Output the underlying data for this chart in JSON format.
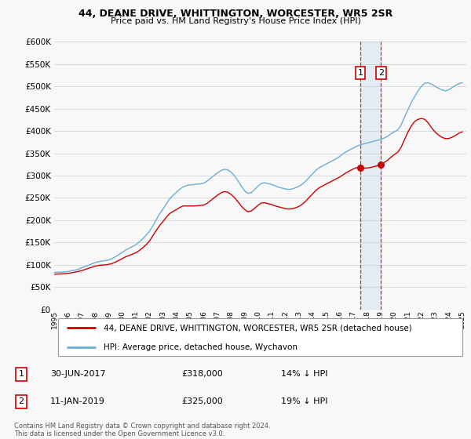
{
  "title": "44, DEANE DRIVE, WHITTINGTON, WORCESTER, WR5 2SR",
  "subtitle": "Price paid vs. HM Land Registry's House Price Index (HPI)",
  "ylim": [
    0,
    600000
  ],
  "yticks": [
    0,
    50000,
    100000,
    150000,
    200000,
    250000,
    300000,
    350000,
    400000,
    450000,
    500000,
    550000,
    600000
  ],
  "xlim_start": 1995.0,
  "xlim_end": 2025.3,
  "legend_entry1": "44, DEANE DRIVE, WHITTINGTON, WORCESTER, WR5 2SR (detached house)",
  "legend_entry2": "HPI: Average price, detached house, Wychavon",
  "marker1_year": 2017.5,
  "marker1_value": 318000,
  "marker2_year": 2019.03,
  "marker2_value": 325000,
  "footer": "Contains HM Land Registry data © Crown copyright and database right 2024.\nThis data is licensed under the Open Government Licence v3.0.",
  "hpi_color": "#6aaed6",
  "price_color": "#cc0000",
  "background_color": "#f8f8f8",
  "grid_color": "#cccccc",
  "hpi_data": [
    [
      1995.0,
      83000
    ],
    [
      1995.25,
      83500
    ],
    [
      1995.5,
      83800
    ],
    [
      1995.75,
      84200
    ],
    [
      1996.0,
      85000
    ],
    [
      1996.25,
      86500
    ],
    [
      1996.5,
      88000
    ],
    [
      1996.75,
      90000
    ],
    [
      1997.0,
      93000
    ],
    [
      1997.25,
      96000
    ],
    [
      1997.5,
      99000
    ],
    [
      1997.75,
      102000
    ],
    [
      1998.0,
      105000
    ],
    [
      1998.25,
      107000
    ],
    [
      1998.5,
      108500
    ],
    [
      1998.75,
      109500
    ],
    [
      1999.0,
      111000
    ],
    [
      1999.25,
      114000
    ],
    [
      1999.5,
      118000
    ],
    [
      1999.75,
      123000
    ],
    [
      2000.0,
      128000
    ],
    [
      2000.25,
      133000
    ],
    [
      2000.5,
      137000
    ],
    [
      2000.75,
      141000
    ],
    [
      2001.0,
      145000
    ],
    [
      2001.25,
      151000
    ],
    [
      2001.5,
      158000
    ],
    [
      2001.75,
      166000
    ],
    [
      2002.0,
      175000
    ],
    [
      2002.25,
      187000
    ],
    [
      2002.5,
      201000
    ],
    [
      2002.75,
      214000
    ],
    [
      2003.0,
      225000
    ],
    [
      2003.25,
      237000
    ],
    [
      2003.5,
      248000
    ],
    [
      2003.75,
      256000
    ],
    [
      2004.0,
      263000
    ],
    [
      2004.25,
      270000
    ],
    [
      2004.5,
      275000
    ],
    [
      2004.75,
      278000
    ],
    [
      2005.0,
      279000
    ],
    [
      2005.25,
      280000
    ],
    [
      2005.5,
      281000
    ],
    [
      2005.75,
      281500
    ],
    [
      2006.0,
      283000
    ],
    [
      2006.25,
      288000
    ],
    [
      2006.5,
      294000
    ],
    [
      2006.75,
      300000
    ],
    [
      2007.0,
      306000
    ],
    [
      2007.25,
      311000
    ],
    [
      2007.5,
      314000
    ],
    [
      2007.75,
      313000
    ],
    [
      2008.0,
      308000
    ],
    [
      2008.25,
      300000
    ],
    [
      2008.5,
      289000
    ],
    [
      2008.75,
      277000
    ],
    [
      2009.0,
      266000
    ],
    [
      2009.25,
      260000
    ],
    [
      2009.5,
      262000
    ],
    [
      2009.75,
      269000
    ],
    [
      2010.0,
      277000
    ],
    [
      2010.25,
      283000
    ],
    [
      2010.5,
      284000
    ],
    [
      2010.75,
      282000
    ],
    [
      2011.0,
      280000
    ],
    [
      2011.25,
      277000
    ],
    [
      2011.5,
      274000
    ],
    [
      2011.75,
      272000
    ],
    [
      2012.0,
      270000
    ],
    [
      2012.25,
      269000
    ],
    [
      2012.5,
      270000
    ],
    [
      2012.75,
      273000
    ],
    [
      2013.0,
      276000
    ],
    [
      2013.25,
      281000
    ],
    [
      2013.5,
      288000
    ],
    [
      2013.75,
      296000
    ],
    [
      2014.0,
      304000
    ],
    [
      2014.25,
      312000
    ],
    [
      2014.5,
      318000
    ],
    [
      2014.75,
      322000
    ],
    [
      2015.0,
      326000
    ],
    [
      2015.25,
      330000
    ],
    [
      2015.5,
      334000
    ],
    [
      2015.75,
      338000
    ],
    [
      2016.0,
      343000
    ],
    [
      2016.25,
      349000
    ],
    [
      2016.5,
      354000
    ],
    [
      2016.75,
      358000
    ],
    [
      2017.0,
      362000
    ],
    [
      2017.25,
      366000
    ],
    [
      2017.5,
      369000
    ],
    [
      2017.75,
      371000
    ],
    [
      2018.0,
      373000
    ],
    [
      2018.25,
      375000
    ],
    [
      2018.5,
      377000
    ],
    [
      2018.75,
      379000
    ],
    [
      2019.0,
      381000
    ],
    [
      2019.25,
      384000
    ],
    [
      2019.5,
      388000
    ],
    [
      2019.75,
      393000
    ],
    [
      2020.0,
      398000
    ],
    [
      2020.25,
      402000
    ],
    [
      2020.5,
      413000
    ],
    [
      2020.75,
      430000
    ],
    [
      2021.0,
      447000
    ],
    [
      2021.25,
      463000
    ],
    [
      2021.5,
      477000
    ],
    [
      2021.75,
      490000
    ],
    [
      2022.0,
      500000
    ],
    [
      2022.25,
      507000
    ],
    [
      2022.5,
      508000
    ],
    [
      2022.75,
      505000
    ],
    [
      2023.0,
      500000
    ],
    [
      2023.25,
      496000
    ],
    [
      2023.5,
      492000
    ],
    [
      2023.75,
      490000
    ],
    [
      2024.0,
      492000
    ],
    [
      2024.25,
      497000
    ],
    [
      2024.5,
      502000
    ],
    [
      2024.75,
      506000
    ],
    [
      2025.0,
      508000
    ]
  ],
  "price_data": [
    [
      1995.0,
      79000
    ],
    [
      1995.25,
      79500
    ],
    [
      1995.5,
      79800
    ],
    [
      1995.75,
      80200
    ],
    [
      1996.0,
      81000
    ],
    [
      1996.25,
      82000
    ],
    [
      1996.5,
      83500
    ],
    [
      1996.75,
      85000
    ],
    [
      1997.0,
      87000
    ],
    [
      1997.25,
      89500
    ],
    [
      1997.5,
      92000
    ],
    [
      1997.75,
      94500
    ],
    [
      1998.0,
      97000
    ],
    [
      1998.25,
      98500
    ],
    [
      1998.5,
      99500
    ],
    [
      1998.75,
      100000
    ],
    [
      1999.0,
      101000
    ],
    [
      1999.25,
      103000
    ],
    [
      1999.5,
      106000
    ],
    [
      1999.75,
      110000
    ],
    [
      2000.0,
      114000
    ],
    [
      2000.25,
      118000
    ],
    [
      2000.5,
      121000
    ],
    [
      2000.75,
      124000
    ],
    [
      2001.0,
      127000
    ],
    [
      2001.25,
      132000
    ],
    [
      2001.5,
      138000
    ],
    [
      2001.75,
      145000
    ],
    [
      2002.0,
      153000
    ],
    [
      2002.25,
      165000
    ],
    [
      2002.5,
      177000
    ],
    [
      2002.75,
      188000
    ],
    [
      2003.0,
      197000
    ],
    [
      2003.25,
      207000
    ],
    [
      2003.5,
      215000
    ],
    [
      2003.75,
      220000
    ],
    [
      2004.0,
      224000
    ],
    [
      2004.25,
      229000
    ],
    [
      2004.5,
      232000
    ],
    [
      2004.75,
      232000
    ],
    [
      2005.0,
      232000
    ],
    [
      2005.25,
      232000
    ],
    [
      2005.5,
      232500
    ],
    [
      2005.75,
      233000
    ],
    [
      2006.0,
      234000
    ],
    [
      2006.25,
      238000
    ],
    [
      2006.5,
      244000
    ],
    [
      2006.75,
      250000
    ],
    [
      2007.0,
      256000
    ],
    [
      2007.25,
      261000
    ],
    [
      2007.5,
      264000
    ],
    [
      2007.75,
      263000
    ],
    [
      2008.0,
      258000
    ],
    [
      2008.25,
      251000
    ],
    [
      2008.5,
      242000
    ],
    [
      2008.75,
      232000
    ],
    [
      2009.0,
      224000
    ],
    [
      2009.25,
      219000
    ],
    [
      2009.5,
      221000
    ],
    [
      2009.75,
      227000
    ],
    [
      2010.0,
      234000
    ],
    [
      2010.25,
      239000
    ],
    [
      2010.5,
      239000
    ],
    [
      2010.75,
      237000
    ],
    [
      2011.0,
      235000
    ],
    [
      2011.25,
      232000
    ],
    [
      2011.5,
      230000
    ],
    [
      2011.75,
      228000
    ],
    [
      2012.0,
      226000
    ],
    [
      2012.25,
      225000
    ],
    [
      2012.5,
      226000
    ],
    [
      2012.75,
      228000
    ],
    [
      2013.0,
      231000
    ],
    [
      2013.25,
      236000
    ],
    [
      2013.5,
      243000
    ],
    [
      2013.75,
      251000
    ],
    [
      2014.0,
      259000
    ],
    [
      2014.25,
      267000
    ],
    [
      2014.5,
      273000
    ],
    [
      2014.75,
      277000
    ],
    [
      2015.0,
      281000
    ],
    [
      2015.25,
      285000
    ],
    [
      2015.5,
      289000
    ],
    [
      2015.75,
      293000
    ],
    [
      2016.0,
      297000
    ],
    [
      2016.25,
      302000
    ],
    [
      2016.5,
      307000
    ],
    [
      2016.75,
      311000
    ],
    [
      2017.0,
      315000
    ],
    [
      2017.25,
      318000
    ],
    [
      2017.5,
      318000
    ],
    [
      2017.75,
      317000
    ],
    [
      2018.0,
      317000
    ],
    [
      2018.25,
      318000
    ],
    [
      2018.5,
      320000
    ],
    [
      2018.75,
      322000
    ],
    [
      2019.0,
      325000
    ],
    [
      2019.25,
      329000
    ],
    [
      2019.5,
      334000
    ],
    [
      2019.75,
      341000
    ],
    [
      2020.0,
      347000
    ],
    [
      2020.25,
      352000
    ],
    [
      2020.5,
      363000
    ],
    [
      2020.75,
      380000
    ],
    [
      2021.0,
      397000
    ],
    [
      2021.25,
      411000
    ],
    [
      2021.5,
      421000
    ],
    [
      2021.75,
      426000
    ],
    [
      2022.0,
      428000
    ],
    [
      2022.25,
      426000
    ],
    [
      2022.5,
      418000
    ],
    [
      2022.75,
      407000
    ],
    [
      2023.0,
      398000
    ],
    [
      2023.25,
      391000
    ],
    [
      2023.5,
      386000
    ],
    [
      2023.75,
      383000
    ],
    [
      2024.0,
      383000
    ],
    [
      2024.25,
      386000
    ],
    [
      2024.5,
      390000
    ],
    [
      2024.75,
      395000
    ],
    [
      2025.0,
      398000
    ]
  ]
}
